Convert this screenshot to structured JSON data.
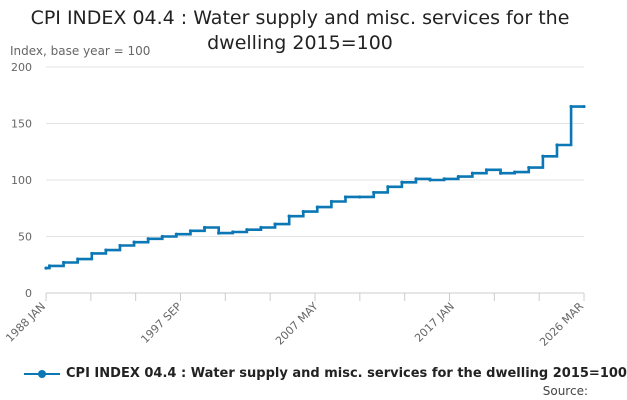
{
  "chart_data": {
    "type": "line",
    "title": "CPI INDEX 04.4 : Water supply and misc. services for the dwelling 2015=100",
    "ylabel": "Index, base year = 100",
    "xlabel": "",
    "ylim": [
      0,
      200
    ],
    "yticks": [
      0,
      50,
      100,
      150,
      200
    ],
    "grid": true,
    "legend_placement": "bottom",
    "x_tick_labels": [
      "1988 JAN",
      "1997 SEP",
      "2007 MAY",
      "2017 JAN",
      "2026 MAR"
    ],
    "colors": {
      "series": "#0b77b4",
      "grid": "#e3e3e3",
      "axis": "#cccccc"
    },
    "series": [
      {
        "name": "CPI INDEX 04.4 : Water supply and misc. services for the dwelling 2015=100",
        "step": true,
        "points": [
          [
            "1988 JAN",
            22
          ],
          [
            "1988 APR",
            24
          ],
          [
            "1989 APR",
            27
          ],
          [
            "1990 APR",
            30
          ],
          [
            "1991 APR",
            35
          ],
          [
            "1992 APR",
            38
          ],
          [
            "1993 APR",
            42
          ],
          [
            "1994 APR",
            45
          ],
          [
            "1995 APR",
            48
          ],
          [
            "1996 APR",
            50
          ],
          [
            "1997 APR",
            52
          ],
          [
            "1998 APR",
            55
          ],
          [
            "1999 APR",
            58
          ],
          [
            "2000 APR",
            53
          ],
          [
            "2001 APR",
            54
          ],
          [
            "2002 APR",
            56
          ],
          [
            "2003 APR",
            58
          ],
          [
            "2004 APR",
            61
          ],
          [
            "2005 APR",
            68
          ],
          [
            "2006 APR",
            72
          ],
          [
            "2007 APR",
            76
          ],
          [
            "2008 APR",
            81
          ],
          [
            "2009 APR",
            85
          ],
          [
            "2010 APR",
            85
          ],
          [
            "2011 APR",
            89
          ],
          [
            "2012 APR",
            94
          ],
          [
            "2013 APR",
            98
          ],
          [
            "2014 APR",
            101
          ],
          [
            "2015 APR",
            100
          ],
          [
            "2016 APR",
            101
          ],
          [
            "2017 APR",
            103
          ],
          [
            "2018 APR",
            106
          ],
          [
            "2019 APR",
            109
          ],
          [
            "2020 APR",
            106
          ],
          [
            "2021 APR",
            107
          ],
          [
            "2022 APR",
            111
          ],
          [
            "2023 APR",
            121
          ],
          [
            "2024 APR",
            131
          ],
          [
            "2025 APR",
            165
          ],
          [
            "2026 MAR",
            165
          ]
        ]
      }
    ]
  },
  "legend": {
    "label": "CPI INDEX 04.4 : Water supply and misc. services for the dwelling 2015=100"
  },
  "source_label": "Source:"
}
